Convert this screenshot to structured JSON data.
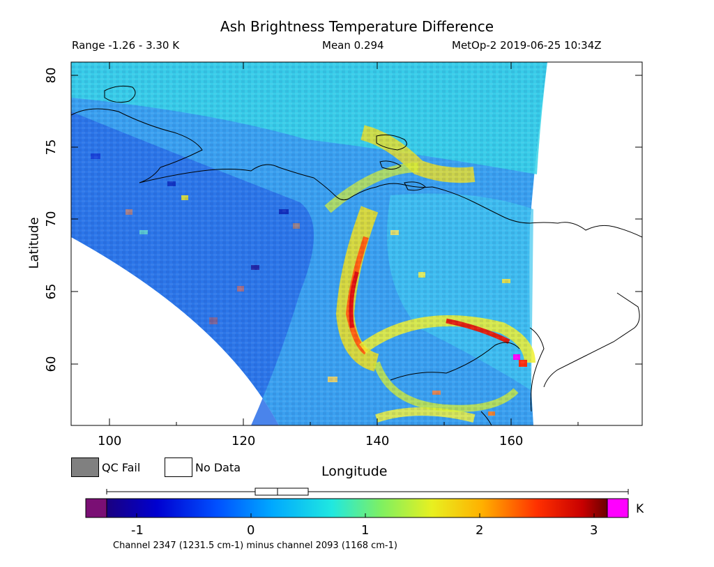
{
  "title": "Ash Brightness Temperature Difference",
  "subtitle": {
    "range": "Range -1.26 - 3.30 K",
    "mean": "Mean 0.294",
    "satellite": "MetOp-2 2019-06-25 10:34Z"
  },
  "axes": {
    "ylabel": "Latitude",
    "xlabel": "Longitude",
    "xticks": [
      "100",
      "120",
      "140",
      "160"
    ],
    "yticks": [
      "80",
      "75",
      "70",
      "65",
      "60"
    ],
    "xlim": [
      94,
      179
    ],
    "ylim": [
      55.6,
      80.9
    ]
  },
  "legend": {
    "qc_fail": "QC Fail",
    "no_data": "No Data",
    "qc_fail_color": "#808080",
    "no_data_color": "#ffffff"
  },
  "colorbar": {
    "ticks": [
      "-1",
      "0",
      "1",
      "2",
      "3"
    ],
    "units": "K",
    "min": -1.26,
    "max": 3.3,
    "under_color": "#7a0f74",
    "over_color": "#ff00ff",
    "caption": "Channel 2347 (1231.5 cm-1) minus channel 2093 (1168 cm-1)"
  },
  "chart_data": {
    "type": "heatmap",
    "title": "Ash Brightness Temperature Difference",
    "xlabel": "Longitude",
    "ylabel": "Latitude",
    "xlim": [
      94,
      179
    ],
    "ylim": [
      55.6,
      80.9
    ],
    "value_range": [
      -1.26,
      3.3
    ],
    "mean": 0.294,
    "units": "K"
  }
}
